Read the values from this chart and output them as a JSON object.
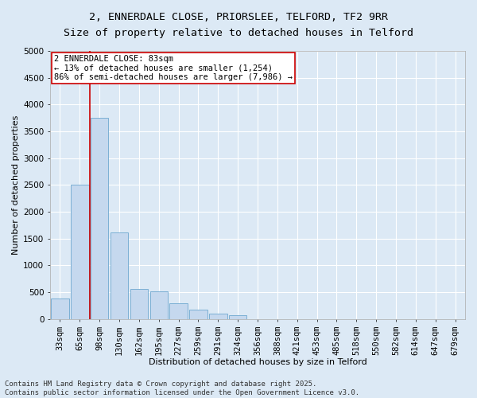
{
  "title_line1": "2, ENNERDALE CLOSE, PRIORSLEE, TELFORD, TF2 9RR",
  "title_line2": "Size of property relative to detached houses in Telford",
  "xlabel": "Distribution of detached houses by size in Telford",
  "ylabel": "Number of detached properties",
  "categories": [
    "33sqm",
    "65sqm",
    "98sqm",
    "130sqm",
    "162sqm",
    "195sqm",
    "227sqm",
    "259sqm",
    "291sqm",
    "324sqm",
    "356sqm",
    "388sqm",
    "421sqm",
    "453sqm",
    "485sqm",
    "518sqm",
    "550sqm",
    "582sqm",
    "614sqm",
    "647sqm",
    "679sqm"
  ],
  "bar_heights": [
    380,
    2500,
    3750,
    1620,
    560,
    520,
    290,
    180,
    100,
    70,
    0,
    0,
    0,
    0,
    0,
    0,
    0,
    0,
    0,
    0,
    0
  ],
  "bar_color": "#c5d8ee",
  "bar_edge_color": "#7bafd4",
  "background_color": "#dce9f5",
  "grid_color": "#ffffff",
  "vline_x": 1.5,
  "vline_color": "#cc0000",
  "ylim": [
    0,
    5000
  ],
  "yticks": [
    0,
    500,
    1000,
    1500,
    2000,
    2500,
    3000,
    3500,
    4000,
    4500,
    5000
  ],
  "annotation_text": "2 ENNERDALE CLOSE: 83sqm\n← 13% of detached houses are smaller (1,254)\n86% of semi-detached houses are larger (7,986) →",
  "annotation_box_facecolor": "#ffffff",
  "annotation_box_edgecolor": "#cc0000",
  "footer_line1": "Contains HM Land Registry data © Crown copyright and database right 2025.",
  "footer_line2": "Contains public sector information licensed under the Open Government Licence v3.0.",
  "title_fontsize": 9.5,
  "axis_label_fontsize": 8,
  "tick_fontsize": 7.5,
  "annotation_fontsize": 7.5,
  "footer_fontsize": 6.5
}
